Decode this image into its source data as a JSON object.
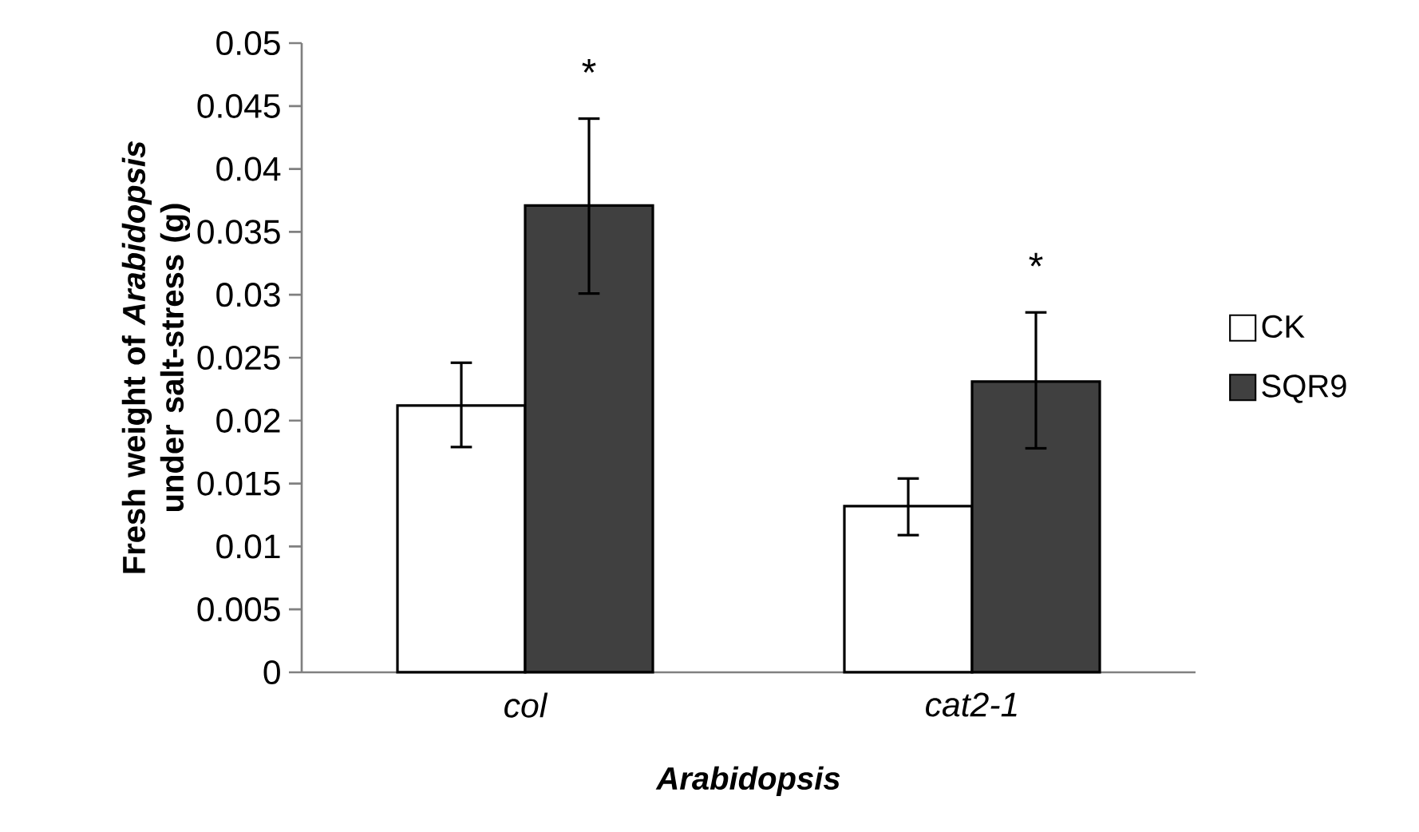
{
  "chart_data": {
    "type": "bar",
    "xlabel": "Arabidopsis",
    "ylabel": "Fresh weight of *Arabidopsis* under salt-stress (g)",
    "categories": [
      "col",
      "cat2-1"
    ],
    "series": [
      {
        "name": "CK",
        "color": "#ffffff",
        "values": [
          0.0212,
          0.0132
        ],
        "errors": [
          [
            0.0179,
            0.0246
          ],
          [
            0.0109,
            0.0154
          ]
        ]
      },
      {
        "name": "SQR9",
        "color": "#404040",
        "values": [
          0.0371,
          0.0231
        ],
        "errors": [
          [
            0.0301,
            0.044
          ],
          [
            0.0178,
            0.0286
          ]
        ]
      }
    ],
    "annotations": [
      "*",
      "*"
    ],
    "ylim": [
      0,
      0.05
    ],
    "yticks": [
      0,
      0.005,
      0.01,
      0.015,
      0.02,
      0.025,
      0.03,
      0.035,
      0.04,
      0.045,
      0.05
    ],
    "grid": false,
    "legend": "right"
  }
}
